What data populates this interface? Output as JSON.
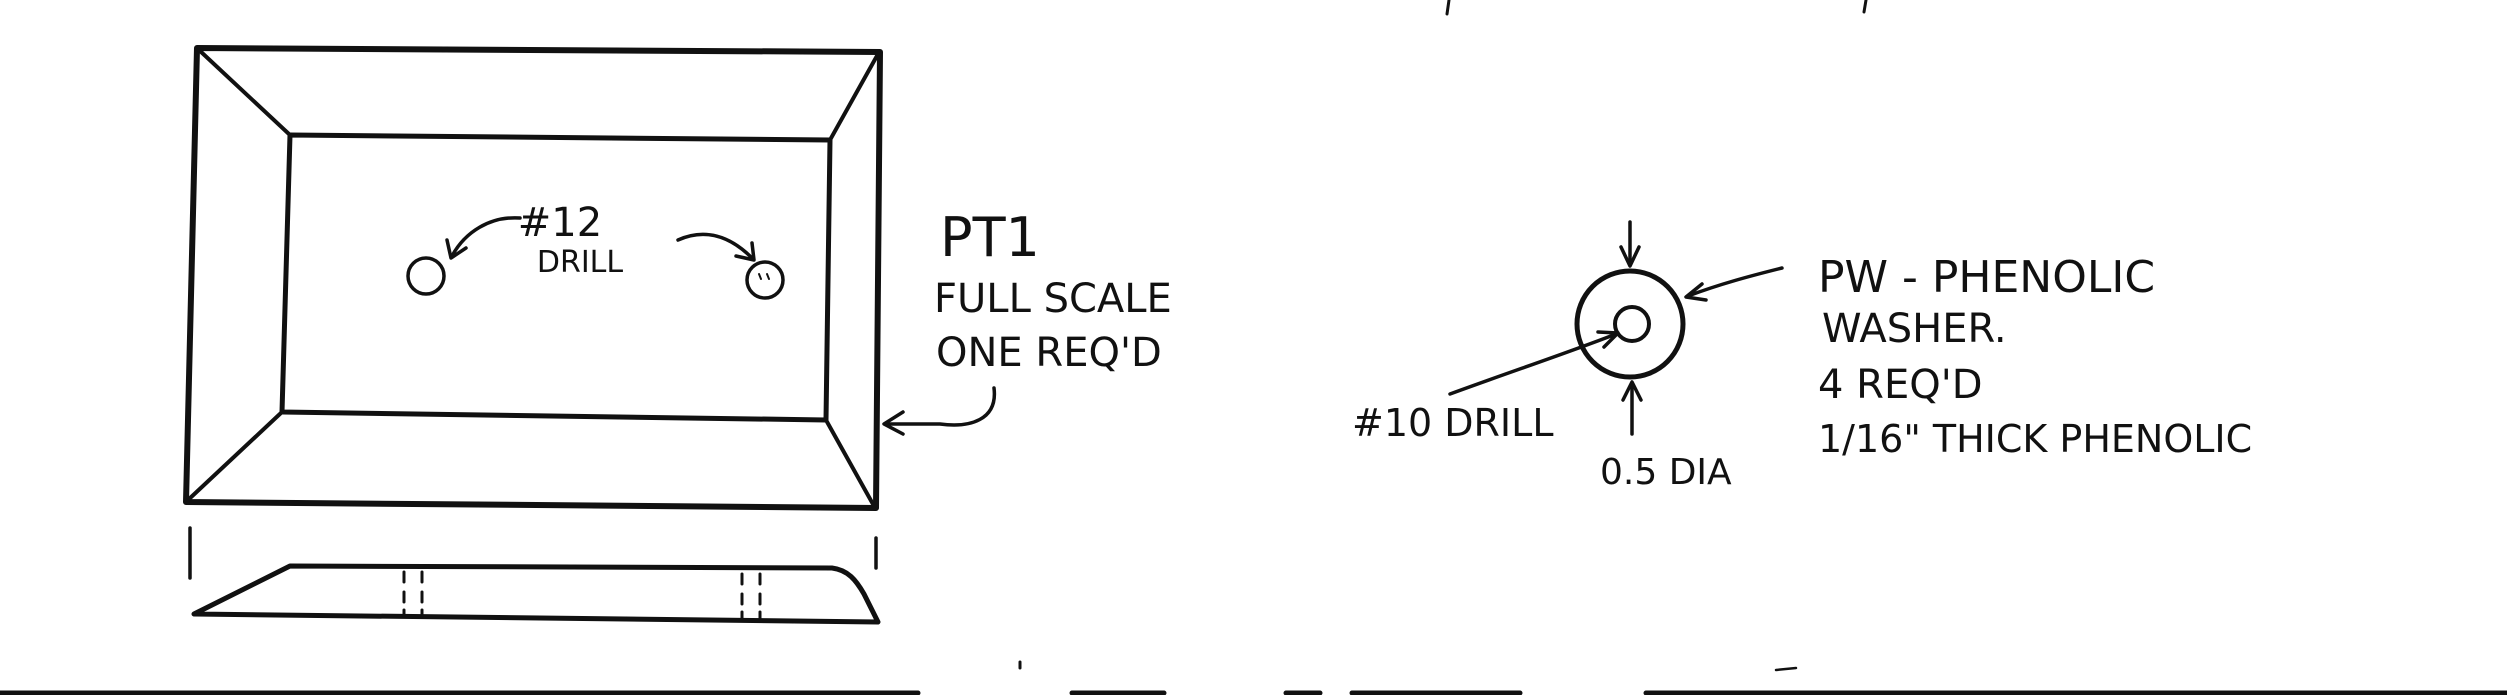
{
  "plate_part": {
    "hole_label_line1": "#12",
    "hole_label_line2": "DRILL",
    "part_id": "PT1",
    "scale_note": "FULL SCALE",
    "qty_note": "ONE REQ'D"
  },
  "washer_part": {
    "title": "PW - PHENOLIC",
    "title_line2": "WASHER.",
    "qty_note": "4 REQ'D",
    "material_note": "1/16\" THICK PHENOLIC",
    "hole_label": "#10 DRILL",
    "diameter_label": "0.5 DIA"
  },
  "colors": {
    "ink": "#111111",
    "paper": "#ffffff"
  }
}
